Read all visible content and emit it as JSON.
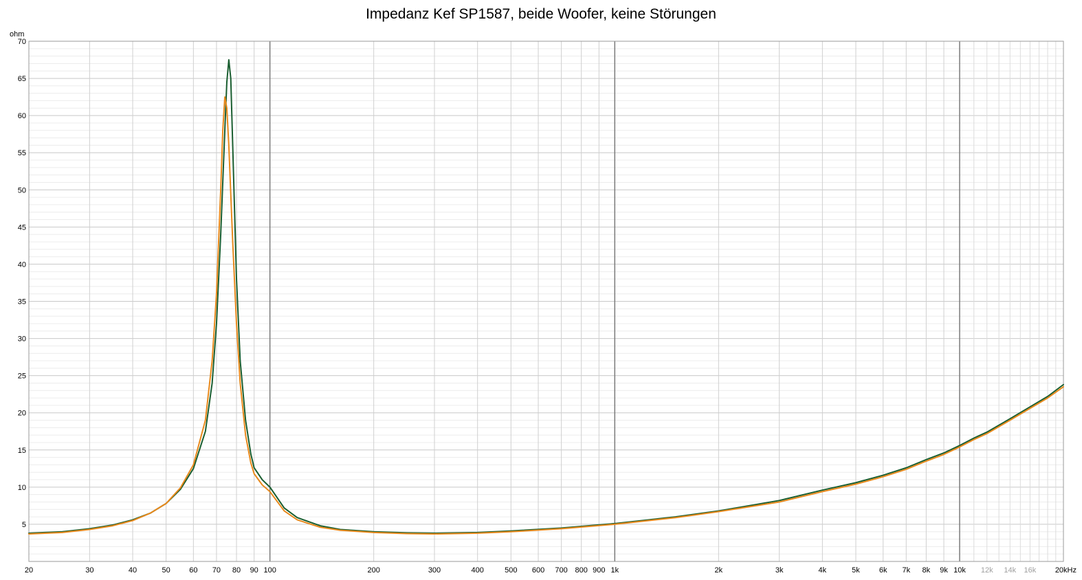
{
  "chart_data": {
    "type": "line",
    "title": "Impedanz Kef SP1587, beide Woofer, keine Störungen",
    "ylabel": "ohm",
    "xlabel": "",
    "xscale": "log",
    "xlim": [
      20,
      20000
    ],
    "ylim": [
      0,
      70
    ],
    "grid": true,
    "legend": "none",
    "y_ticks": [
      5,
      10,
      15,
      20,
      25,
      30,
      35,
      40,
      45,
      50,
      55,
      60,
      65,
      70
    ],
    "x_ticks": [
      {
        "value": 20,
        "label": "20"
      },
      {
        "value": 30,
        "label": "30"
      },
      {
        "value": 40,
        "label": "40"
      },
      {
        "value": 50,
        "label": "50"
      },
      {
        "value": 60,
        "label": "60"
      },
      {
        "value": 70,
        "label": "70"
      },
      {
        "value": 80,
        "label": "80"
      },
      {
        "value": 90,
        "label": "90"
      },
      {
        "value": 100,
        "label": "100"
      },
      {
        "value": 200,
        "label": "200"
      },
      {
        "value": 300,
        "label": "300"
      },
      {
        "value": 400,
        "label": "400"
      },
      {
        "value": 500,
        "label": "500"
      },
      {
        "value": 600,
        "label": "600"
      },
      {
        "value": 700,
        "label": "700"
      },
      {
        "value": 800,
        "label": "800"
      },
      {
        "value": 900,
        "label": "900"
      },
      {
        "value": 1000,
        "label": "1k"
      },
      {
        "value": 2000,
        "label": "2k"
      },
      {
        "value": 3000,
        "label": "3k"
      },
      {
        "value": 4000,
        "label": "4k"
      },
      {
        "value": 5000,
        "label": "5k"
      },
      {
        "value": 6000,
        "label": "6k"
      },
      {
        "value": 7000,
        "label": "7k"
      },
      {
        "value": 8000,
        "label": "8k"
      },
      {
        "value": 9000,
        "label": "9k"
      },
      {
        "value": 10000,
        "label": "10k"
      },
      {
        "value": 12000,
        "label": "12k",
        "faint": true
      },
      {
        "value": 14000,
        "label": "14k",
        "faint": true
      },
      {
        "value": 16000,
        "label": "16k",
        "faint": true
      },
      {
        "value": 20000,
        "label": "20kHz"
      }
    ],
    "series": [
      {
        "color": "#1a5e30",
        "x": [
          20,
          25,
          30,
          35,
          40,
          45,
          50,
          55,
          60,
          65,
          68,
          70,
          72,
          74,
          75,
          76,
          77,
          78,
          80,
          82,
          85,
          88,
          90,
          95,
          100,
          110,
          120,
          140,
          160,
          200,
          250,
          300,
          400,
          500,
          700,
          1000,
          1500,
          2000,
          3000,
          4000,
          5000,
          6000,
          7000,
          8000,
          9000,
          10000,
          11000,
          12000,
          14000,
          16000,
          18000,
          20000
        ],
        "values": [
          3.8,
          4.0,
          4.4,
          4.9,
          5.6,
          6.5,
          7.8,
          9.7,
          12.5,
          17.5,
          24.0,
          32.0,
          44.0,
          58.0,
          64.5,
          67.5,
          65.0,
          56.0,
          38.0,
          27.0,
          19.0,
          14.5,
          12.6,
          11.0,
          10.0,
          7.2,
          5.9,
          4.8,
          4.3,
          4.0,
          3.85,
          3.8,
          3.9,
          4.1,
          4.5,
          5.1,
          6.0,
          6.8,
          8.2,
          9.6,
          10.6,
          11.6,
          12.6,
          13.7,
          14.6,
          15.6,
          16.6,
          17.4,
          19.2,
          20.8,
          22.2,
          23.8
        ]
      },
      {
        "color": "#e8891c",
        "x": [
          20,
          25,
          30,
          35,
          40,
          45,
          50,
          55,
          60,
          65,
          68,
          70,
          72,
          73,
          74,
          75,
          76,
          78,
          80,
          82,
          85,
          88,
          90,
          95,
          100,
          110,
          120,
          140,
          160,
          200,
          250,
          300,
          400,
          500,
          700,
          1000,
          1500,
          2000,
          3000,
          4000,
          5000,
          6000,
          7000,
          8000,
          9000,
          10000,
          11000,
          12000,
          14000,
          16000,
          18000,
          20000
        ],
        "values": [
          3.7,
          3.9,
          4.3,
          4.8,
          5.5,
          6.5,
          7.8,
          9.9,
          13.0,
          19.0,
          27.0,
          36.0,
          50.0,
          58.0,
          62.5,
          61.0,
          56.0,
          43.0,
          32.0,
          24.0,
          17.0,
          13.3,
          11.8,
          10.3,
          9.4,
          6.8,
          5.6,
          4.6,
          4.2,
          3.9,
          3.75,
          3.7,
          3.8,
          4.0,
          4.4,
          5.0,
          5.9,
          6.7,
          8.0,
          9.4,
          10.4,
          11.4,
          12.4,
          13.5,
          14.4,
          15.4,
          16.4,
          17.2,
          19.0,
          20.6,
          22.0,
          23.5
        ]
      }
    ]
  }
}
